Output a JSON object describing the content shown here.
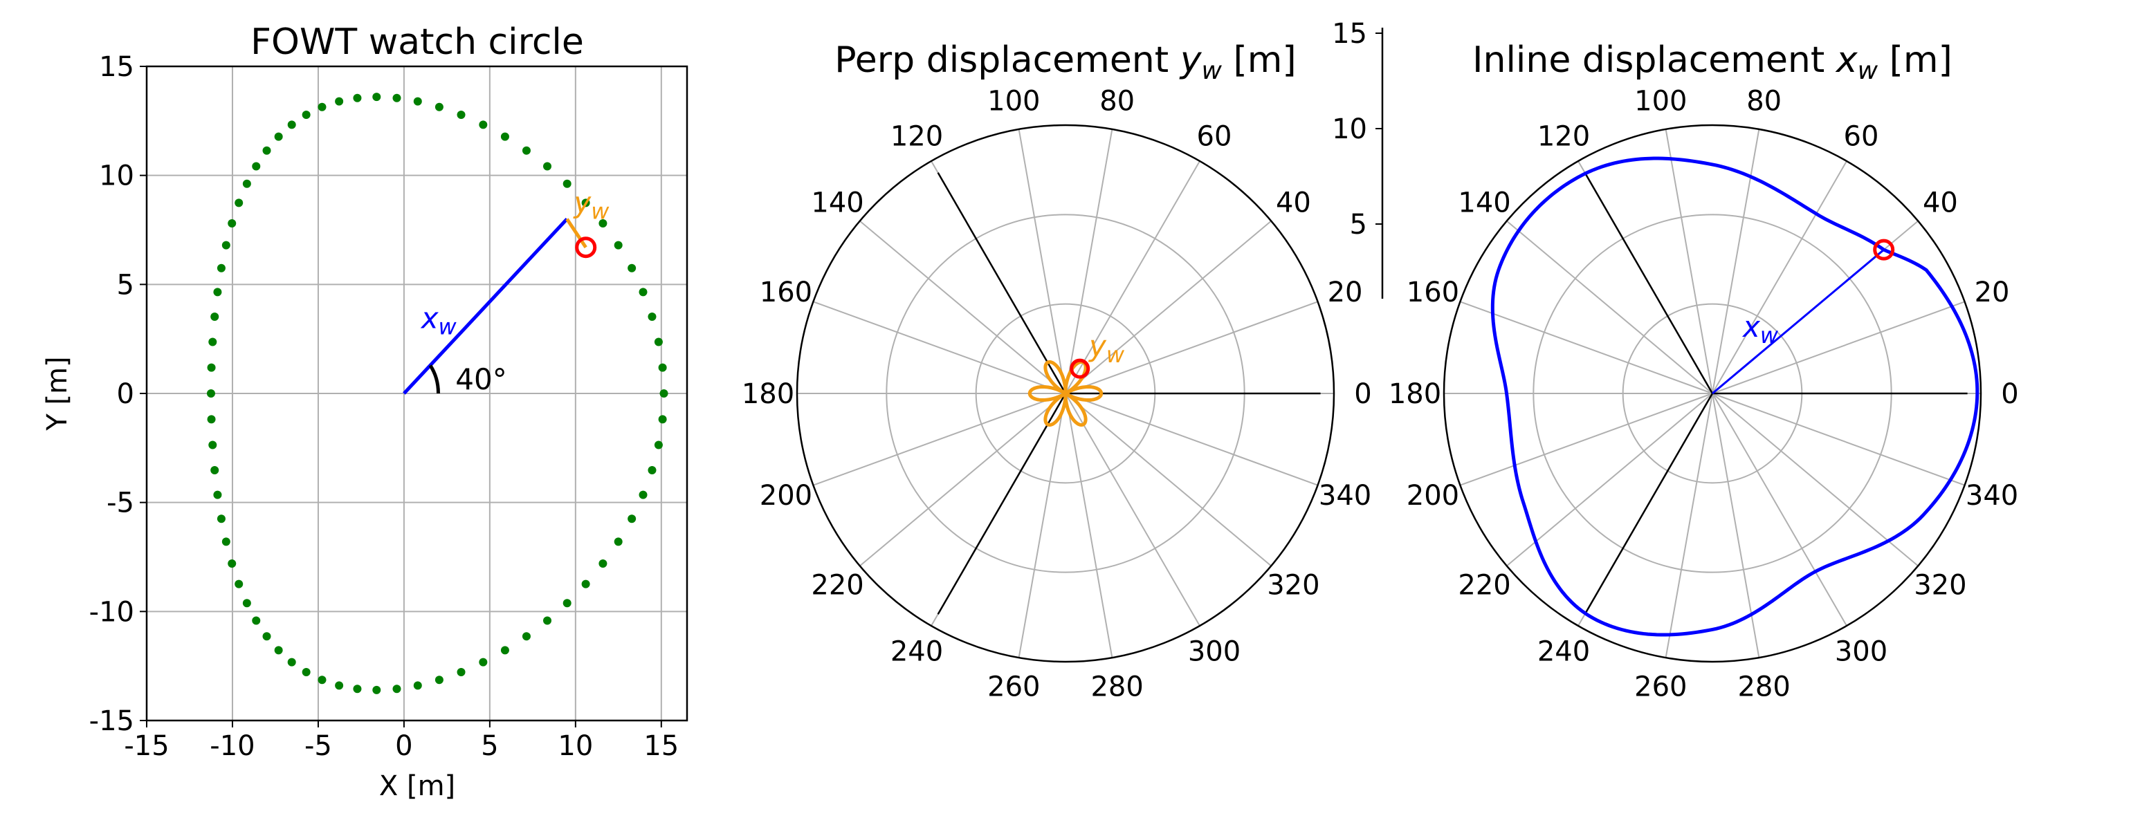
{
  "colors": {
    "watch_points": "#007f00",
    "inline": "#0000ff",
    "perp": "#f39c12",
    "marker": "#ff0000",
    "grid": "#b0b0b0",
    "axis": "#000000"
  },
  "chart_data": [
    {
      "type": "scatter",
      "title": "FOWT watch circle",
      "xlabel": "X [m]",
      "ylabel": "Y [m]",
      "xlim": [
        -15,
        16.5
      ],
      "ylim": [
        -15,
        15
      ],
      "xticks": [
        -15,
        -10,
        -5,
        0,
        5,
        10,
        15
      ],
      "yticks": [
        -15,
        -10,
        -5,
        0,
        5,
        10,
        15
      ],
      "grid": true,
      "series": [
        {
          "name": "",
          "marker": "dot",
          "shape_params": {
            "center_x": 1.95,
            "center_y": 0,
            "semi_axis_x": 13.2,
            "semi_axis_y": 13.6,
            "top_peak_x": -4.5,
            "n_points": 72
          }
        }
      ],
      "vector_xw": {
        "from": [
          0,
          0
        ],
        "to": [
          9.5,
          8.0
        ],
        "label_main": "x",
        "label_sub": "w"
      },
      "vector_yw": {
        "from": [
          9.5,
          8.0
        ],
        "to": [
          10.6,
          6.7
        ],
        "label_main": "y",
        "label_sub": "w"
      },
      "highlight_point": [
        10.6,
        6.7
      ],
      "angle_annotation": "40°"
    },
    {
      "type": "polar_line",
      "title_prefix": "Perp displacement ",
      "title_var": "y",
      "title_sub": "w",
      "title_suffix": " [m]",
      "theta_ticks_deg": [
        0,
        20,
        40,
        60,
        80,
        100,
        120,
        140,
        160,
        180,
        200,
        220,
        240,
        260,
        280,
        300,
        320,
        340
      ],
      "theta_tick_labels": [
        "0",
        "20",
        "40",
        "60",
        "80",
        "100",
        "120",
        "140",
        "160",
        "180",
        "200",
        "220",
        "240",
        "260",
        "280",
        "300",
        "320",
        "340"
      ],
      "r_max": 15,
      "r_grid": [
        5,
        10,
        15
      ],
      "r_axis_labels": [
        "5",
        "10",
        "15"
      ],
      "r_axis_label_values": [
        5,
        10,
        15
      ],
      "reference_lines_deg": [
        0,
        120,
        240
      ],
      "series": [
        {
          "name": "",
          "description": "six-lobed rose",
          "lobes": 6,
          "amplitude_m": 2.0
        }
      ],
      "highlight_point": {
        "theta_deg": 60,
        "r": 1.6
      },
      "annotation": {
        "main": "y",
        "sub": "w"
      }
    },
    {
      "type": "polar_line",
      "title_prefix": "Inline displacement ",
      "title_var": "x",
      "title_sub": "w",
      "title_suffix": " [m]",
      "theta_ticks_deg": [
        0,
        20,
        40,
        60,
        80,
        100,
        120,
        140,
        160,
        180,
        200,
        220,
        240,
        260,
        280,
        300,
        320,
        340
      ],
      "theta_tick_labels": [
        "0",
        "20",
        "40",
        "60",
        "80",
        "100",
        "120",
        "140",
        "160",
        "180",
        "200",
        "220",
        "240",
        "260",
        "280",
        "300",
        "320",
        "340"
      ],
      "r_max": 15,
      "r_grid": [
        5,
        10,
        15
      ],
      "reference_lines_deg": [
        0,
        120,
        240
      ],
      "series": [
        {
          "name": "",
          "theta_deg": [
            0,
            30,
            40,
            60,
            90,
            120,
            150,
            180,
            210,
            240,
            270,
            300,
            330,
            360
          ],
          "r": [
            14.8,
            13.8,
            12.5,
            11.6,
            12.8,
            14.2,
            13.8,
            11.5,
            12.2,
            14.2,
            13.2,
            11.5,
            13.6,
            14.8
          ]
        }
      ],
      "radial_line_deg": 40,
      "highlight_point": {
        "theta_deg": 40,
        "r": 12.5
      },
      "annotation": {
        "main": "x",
        "sub": "w"
      }
    }
  ]
}
